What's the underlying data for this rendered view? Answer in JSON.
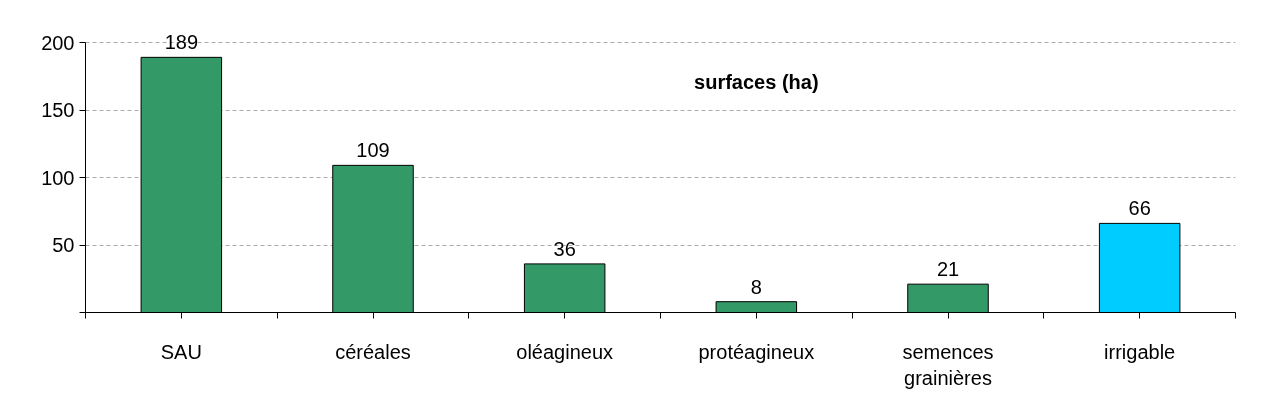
{
  "chart_data": {
    "type": "bar",
    "title": "surfaces (ha)",
    "categories": [
      "SAU",
      "céréales",
      "oléagineux",
      "protéagineux",
      "semences grainières",
      "irrigable"
    ],
    "values": [
      189,
      109,
      36,
      8,
      21,
      66
    ],
    "colors": [
      "#339966",
      "#339966",
      "#339966",
      "#339966",
      "#339966",
      "#00ccff"
    ],
    "ylim": [
      0,
      200
    ],
    "yticks": [
      {
        "value": 0,
        "label": null
      },
      50,
      100,
      150,
      200
    ],
    "grid": "y",
    "data_labels": true
  }
}
